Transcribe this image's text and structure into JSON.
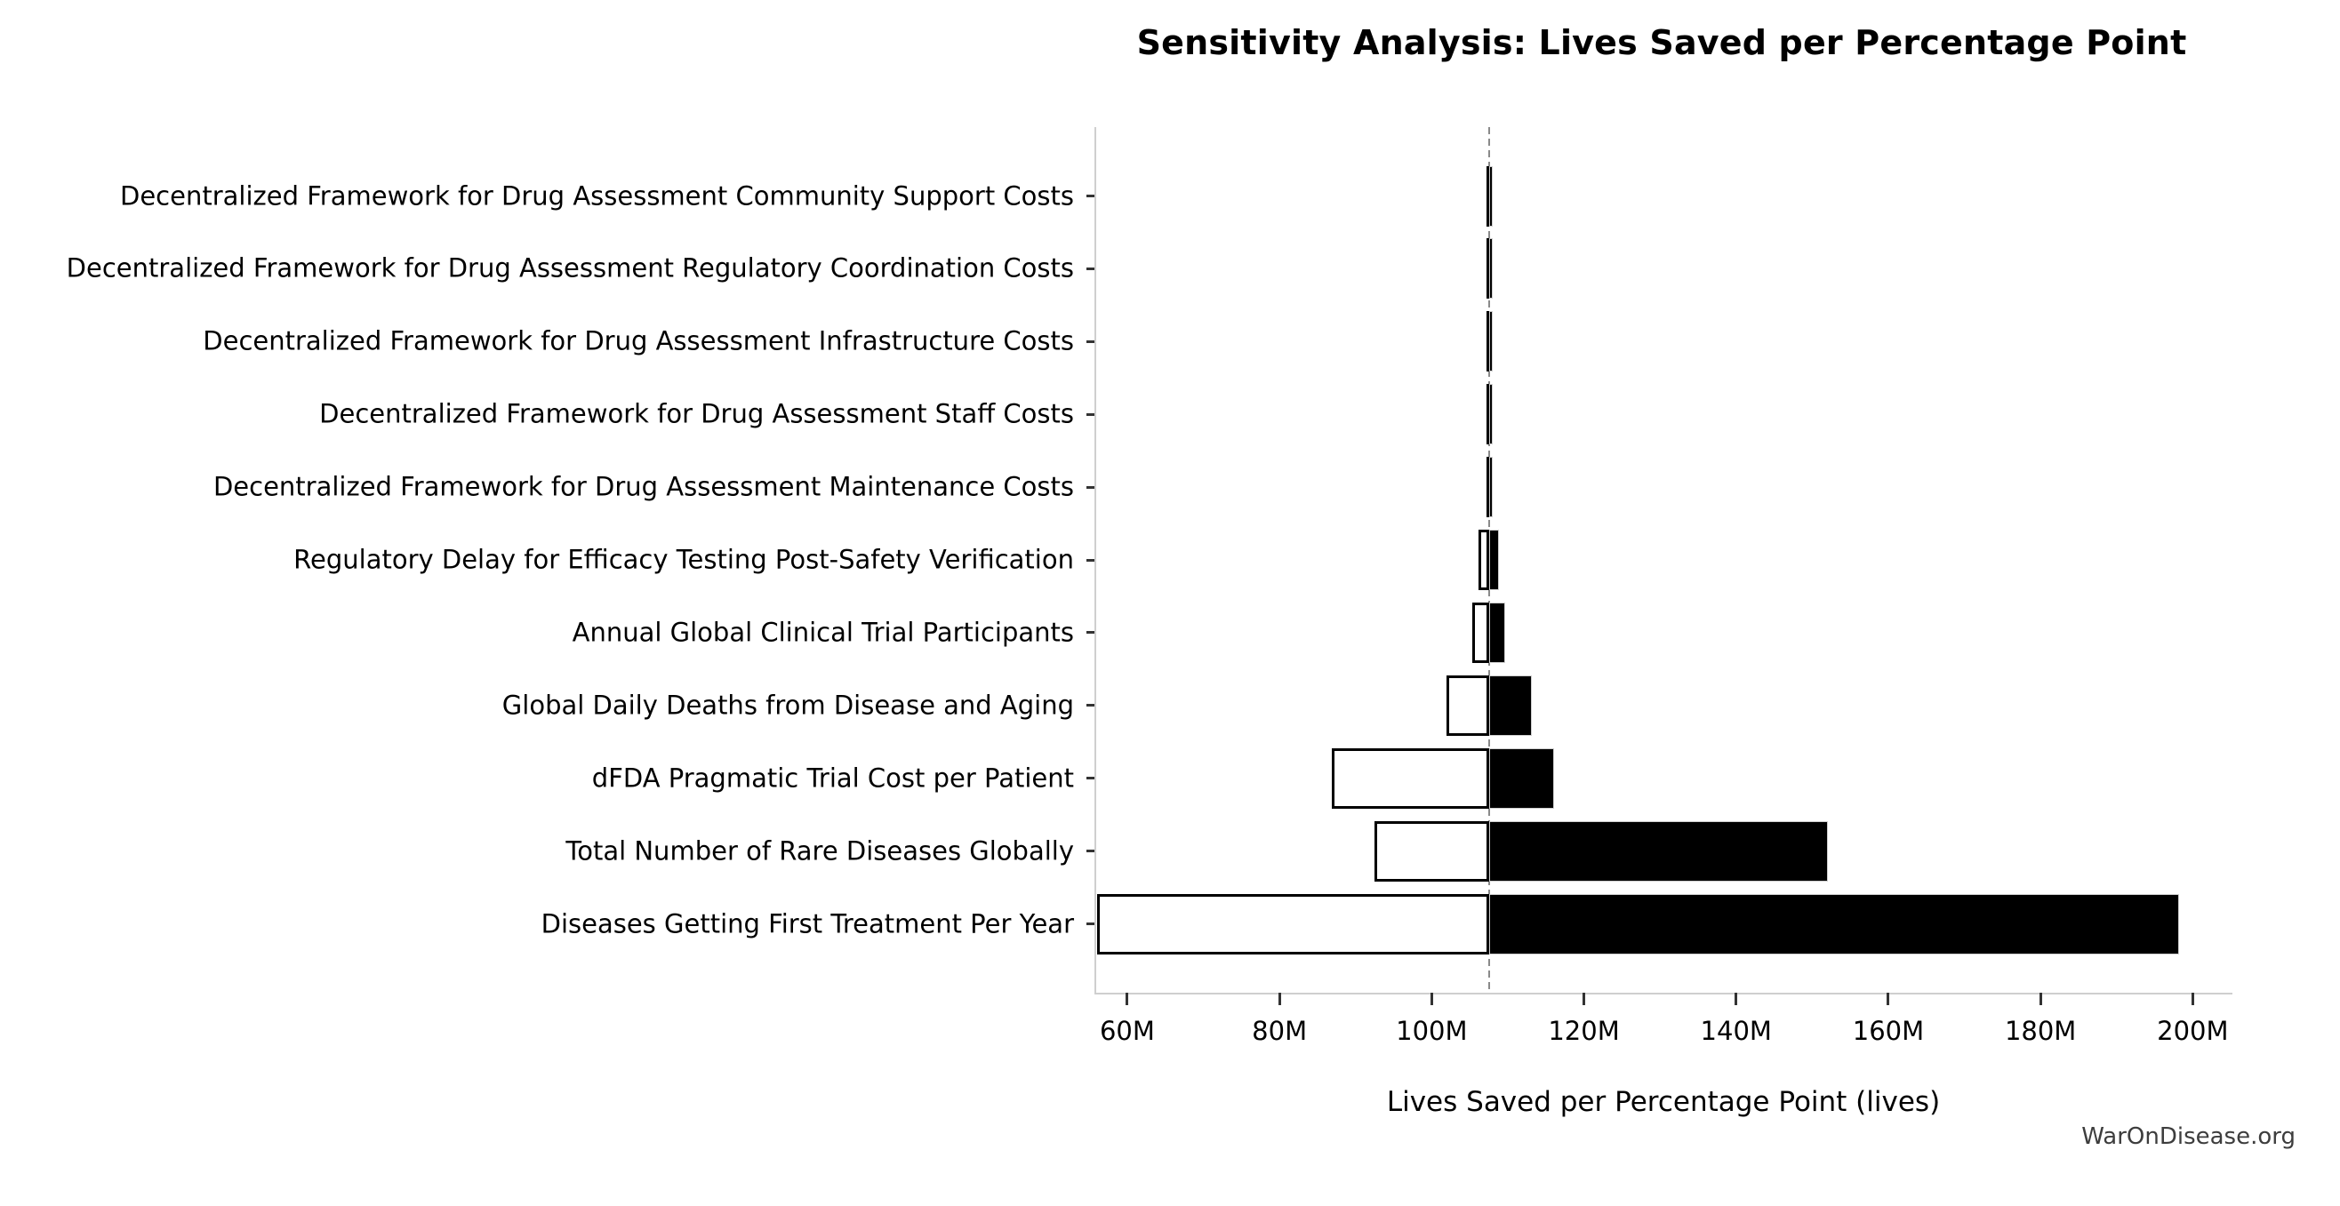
{
  "footer": {
    "watermark": "WarOnDisease.org"
  },
  "chart_data": {
    "type": "bar",
    "subtype": "tornado-sensitivity",
    "orientation": "horizontal",
    "title": "Sensitivity Analysis: Lives Saved per Percentage Point",
    "xlabel": "Lives Saved per Percentage Point (lives)",
    "values_unit": "millions of lives",
    "baseline_value": 107.6,
    "xlim": [
      55.8,
      205.1
    ],
    "grid": false,
    "legend": null,
    "bar_low_style": "white fill, black outline",
    "bar_high_style": "black fill",
    "x_ticks": [
      {
        "value": 60,
        "label": "60M"
      },
      {
        "value": 80,
        "label": "80M"
      },
      {
        "value": 100,
        "label": "100M"
      },
      {
        "value": 120,
        "label": "120M"
      },
      {
        "value": 140,
        "label": "140M"
      },
      {
        "value": 160,
        "label": "160M"
      },
      {
        "value": 180,
        "label": "180M"
      },
      {
        "value": 200,
        "label": "200M"
      }
    ],
    "rows": [
      {
        "label": "Decentralized Framework for Drug Assessment Community Support Costs",
        "low": 107.2,
        "high": 108.0
      },
      {
        "label": "Decentralized Framework for Drug Assessment Regulatory Coordination Costs",
        "low": 107.2,
        "high": 108.0
      },
      {
        "label": "Decentralized Framework for Drug Assessment Infrastructure Costs",
        "low": 107.2,
        "high": 108.0
      },
      {
        "label": "Decentralized Framework for Drug Assessment Staff Costs",
        "low": 107.2,
        "high": 108.0
      },
      {
        "label": "Decentralized Framework for Drug Assessment Maintenance Costs",
        "low": 107.2,
        "high": 108.0
      },
      {
        "label": "Regulatory Delay for Efficacy Testing Post-Safety Verification",
        "low": 106.1,
        "high": 108.8
      },
      {
        "label": "Annual Global Clinical Trial Participants",
        "low": 105.3,
        "high": 109.7
      },
      {
        "label": "Global Daily Deaths from Disease and Aging",
        "low": 102.0,
        "high": 113.2
      },
      {
        "label": "dFDA Pragmatic Trial Cost per Patient",
        "low": 86.9,
        "high": 116.1
      },
      {
        "label": "Total Number of Rare Diseases Globally",
        "low": 92.5,
        "high": 152.1
      },
      {
        "label": "Diseases Getting First Treatment Per Year",
        "low": 56.0,
        "high": 198.2
      }
    ]
  }
}
